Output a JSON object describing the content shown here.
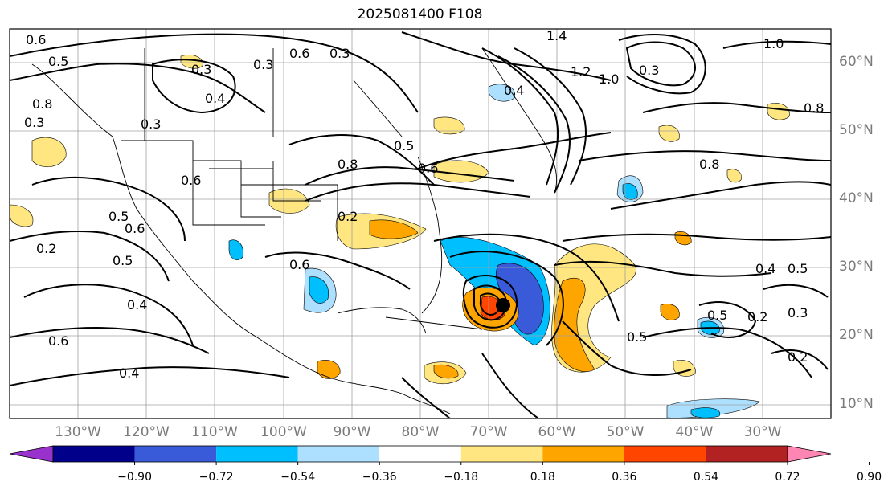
{
  "title": "2025081400 F108",
  "lat_labels": [
    "60°N",
    "50°N",
    "40°N",
    "30°N",
    "20°N",
    "10°N"
  ],
  "lon_labels": [
    "130°W",
    "120°W",
    "110°W",
    "100°W",
    "90°W",
    "80°W",
    "70°W",
    "60°W",
    "50°W",
    "40°W",
    "30°W"
  ],
  "colorbar": {
    "colors": [
      "#9932cc",
      "#00008b",
      "#3a5bd9",
      "#00bfff",
      "#addfff",
      "#ffffff",
      "#ffe680",
      "#ffa500",
      "#ff4500",
      "#b22222",
      "#ff85b3"
    ],
    "ticks": [
      "−0.90",
      "−0.72",
      "−0.54",
      "−0.36",
      "−0.18",
      "0.18",
      "0.36",
      "0.54",
      "0.72",
      "0.90"
    ]
  },
  "contour_labels": [
    "0.6",
    "0.5",
    "0.3",
    "0.4",
    "0.3",
    "0.6",
    "0.3",
    "1.4",
    "1.2",
    "1.0",
    "0.4",
    "1.0",
    "0.8",
    "0.8",
    "0.5",
    "0.8",
    "0.6",
    "0.5",
    "0.6",
    "0.2",
    "0.4",
    "0.6",
    "0.4",
    "0.5",
    "0.2",
    "0.5",
    "0.3",
    "0.8",
    "0.3",
    "0.6",
    "0.5",
    "0.6",
    "0.2",
    "0.4",
    "0.2",
    "0.3",
    "0.5",
    "0.3"
  ]
}
